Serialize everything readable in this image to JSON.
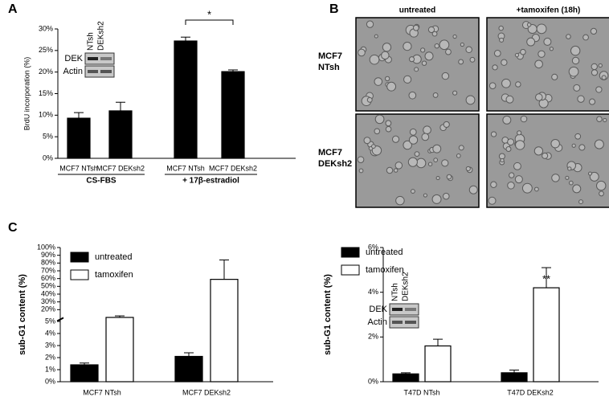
{
  "chart_data": [
    {
      "type": "bar",
      "panel": "A",
      "ylabel": "BrdU incorporation (%)",
      "categories": [
        "MCF7 NTsh",
        "MCF7 DEKsh2",
        "MCF7 NTsh",
        "MCF7 DEKsh2"
      ],
      "values": [
        9.3,
        11,
        27.2,
        20.1
      ],
      "errors": [
        1.3,
        2,
        0.9,
        0.4
      ],
      "color": "#000000",
      "groups": [
        "CS-FBS",
        "+ 17β-estradiol"
      ],
      "significance": "*",
      "ylim": [
        0,
        30
      ],
      "yticks": [
        {
          "value": 0,
          "label": "0%"
        },
        {
          "value": 5,
          "label": "5%"
        },
        {
          "value": 10,
          "label": "10%"
        },
        {
          "value": 15,
          "label": "15%"
        },
        {
          "value": 20,
          "label": "20%"
        },
        {
          "value": 25,
          "label": "25%"
        },
        {
          "value": 30,
          "label": "30%"
        }
      ],
      "inset": {
        "lanes": [
          "NTsh",
          "DEKsh2"
        ],
        "rows": [
          "DEK",
          "Actin"
        ]
      }
    },
    {
      "type": "bar",
      "panel": "C",
      "ylabel": "sub-G1 content (%)",
      "categories": [
        "MCF7 NTsh",
        "MCF7 DEKsh2"
      ],
      "series": [
        {
          "name": "untreated",
          "color": "#000000",
          "values": [
            1.4,
            2.1
          ],
          "errors": [
            0.15,
            0.3
          ]
        },
        {
          "name": "tamoxifen",
          "color": "#ffffff",
          "values": [
            10,
            59
          ],
          "errors": [
            2,
            25
          ]
        }
      ],
      "ylim": [
        0,
        100
      ],
      "axis_break": [
        5,
        10
      ],
      "yticks": [
        {
          "value": 0,
          "label": "0%"
        },
        {
          "value": 1,
          "label": "1%"
        },
        {
          "value": 2,
          "label": "2%"
        },
        {
          "value": 3,
          "label": "3%"
        },
        {
          "value": 4,
          "label": "4%"
        },
        {
          "value": 5,
          "label": "5%"
        },
        {
          "value": 20,
          "label": "20%"
        },
        {
          "value": 30,
          "label": "30%"
        },
        {
          "value": 40,
          "label": "40%"
        },
        {
          "value": 50,
          "label": "50%"
        },
        {
          "value": 60,
          "label": "60%"
        },
        {
          "value": 70,
          "label": "70%"
        },
        {
          "value": 80,
          "label": "80%"
        },
        {
          "value": 90,
          "label": "90%"
        },
        {
          "value": 100,
          "label": "100%"
        }
      ]
    },
    {
      "type": "bar",
      "ylabel": "sub-G1 content (%)",
      "categories": [
        "T47D NTsh",
        "T47D DEKsh2"
      ],
      "series": [
        {
          "name": "untreated",
          "color": "#000000",
          "values": [
            0.35,
            0.4
          ],
          "errors": [
            0.05,
            0.12
          ]
        },
        {
          "name": "tamoxifen",
          "color": "#ffffff",
          "values": [
            1.6,
            4.2
          ],
          "errors": [
            0.3,
            0.9
          ]
        }
      ],
      "significance": "**",
      "ylim": [
        0,
        6
      ],
      "yticks": [
        {
          "value": 0,
          "label": "0%"
        },
        {
          "value": 2,
          "label": "2%"
        },
        {
          "value": 4,
          "label": "4%"
        },
        {
          "value": 6,
          "label": "6%"
        }
      ],
      "inset": {
        "lanes": [
          "NTsh",
          "DEKsh2"
        ],
        "rows": [
          "DEK",
          "Actin"
        ]
      }
    }
  ],
  "panel_b": {
    "panel": "B",
    "columns": [
      "untreated",
      "+tamoxifen (18h)"
    ],
    "rows": [
      [
        "MCF7",
        "NTsh"
      ],
      [
        "MCF7",
        "DEKsh2"
      ]
    ]
  }
}
